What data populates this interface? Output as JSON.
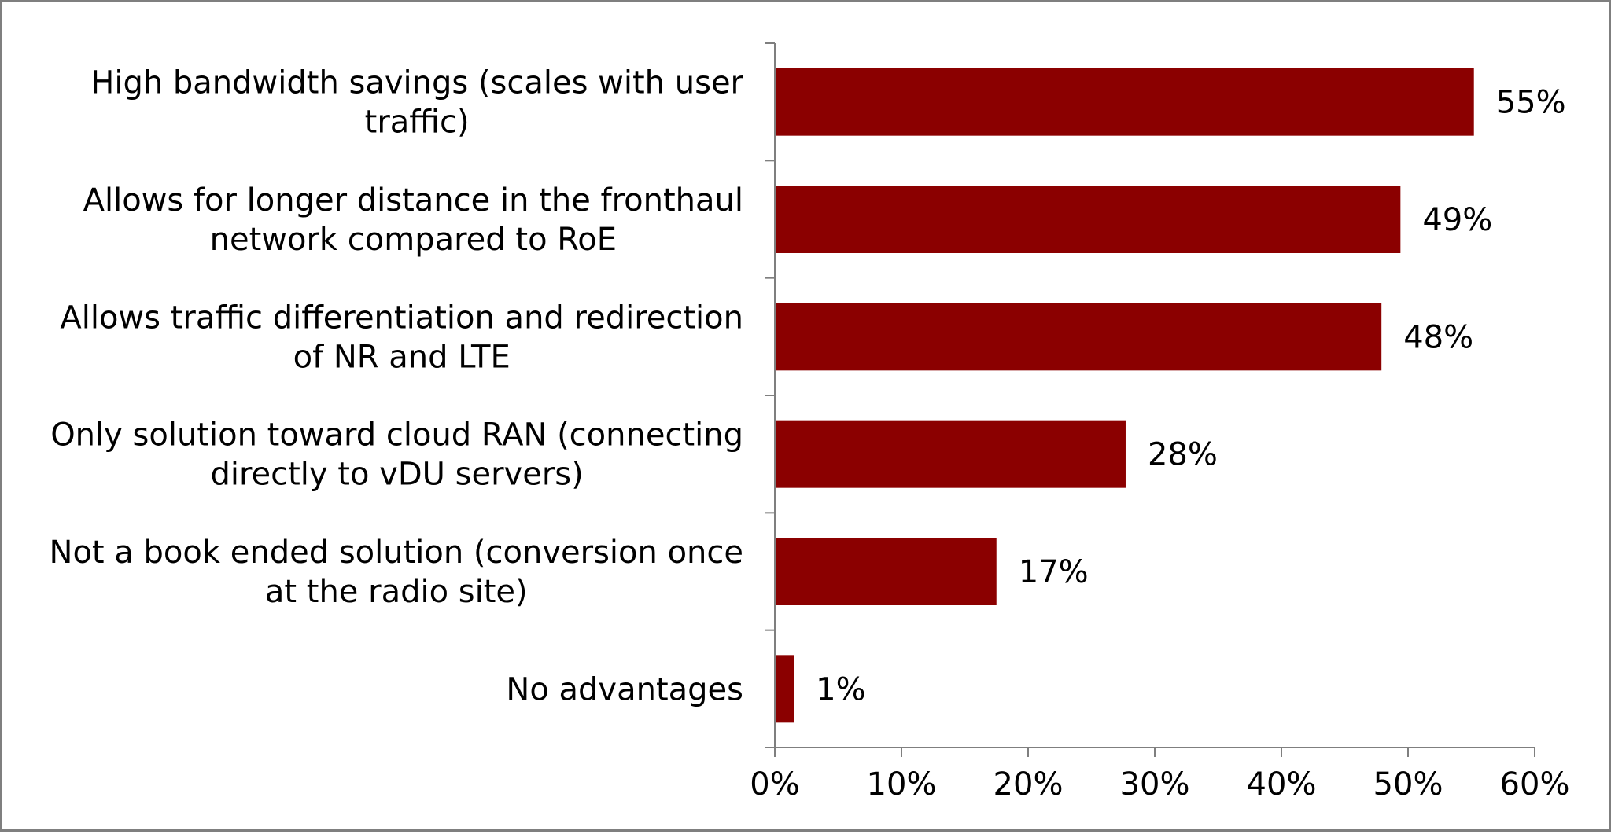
{
  "chart_data": {
    "type": "bar",
    "orientation": "horizontal",
    "categories": [
      [
        "High bandwidth savings (scales with user",
        "traffic)"
      ],
      [
        "Allows for longer distance in the fronthaul",
        "network compared to RoE"
      ],
      [
        "Allows traffic differentiation and redirection",
        "of NR and LTE"
      ],
      [
        "Only solution toward cloud RAN (connecting",
        "directly to vDU servers)"
      ],
      [
        "Not a book ended solution (conversion once",
        "at the radio site)"
      ],
      [
        "No advantages"
      ]
    ],
    "values": [
      55.2,
      49.4,
      47.9,
      27.7,
      17.5,
      1.5
    ],
    "data_labels": [
      "55%",
      "49%",
      "48%",
      "28%",
      "17%",
      "1%"
    ],
    "xlim": [
      0,
      60
    ],
    "x_ticks": [
      0,
      10,
      20,
      30,
      40,
      50,
      60
    ],
    "x_tick_labels": [
      "0%",
      "10%",
      "20%",
      "30%",
      "40%",
      "50%",
      "60%"
    ],
    "bar_color": "#8b0000",
    "axis_color": "#7f7f7f",
    "grid": false,
    "legend": "none"
  }
}
